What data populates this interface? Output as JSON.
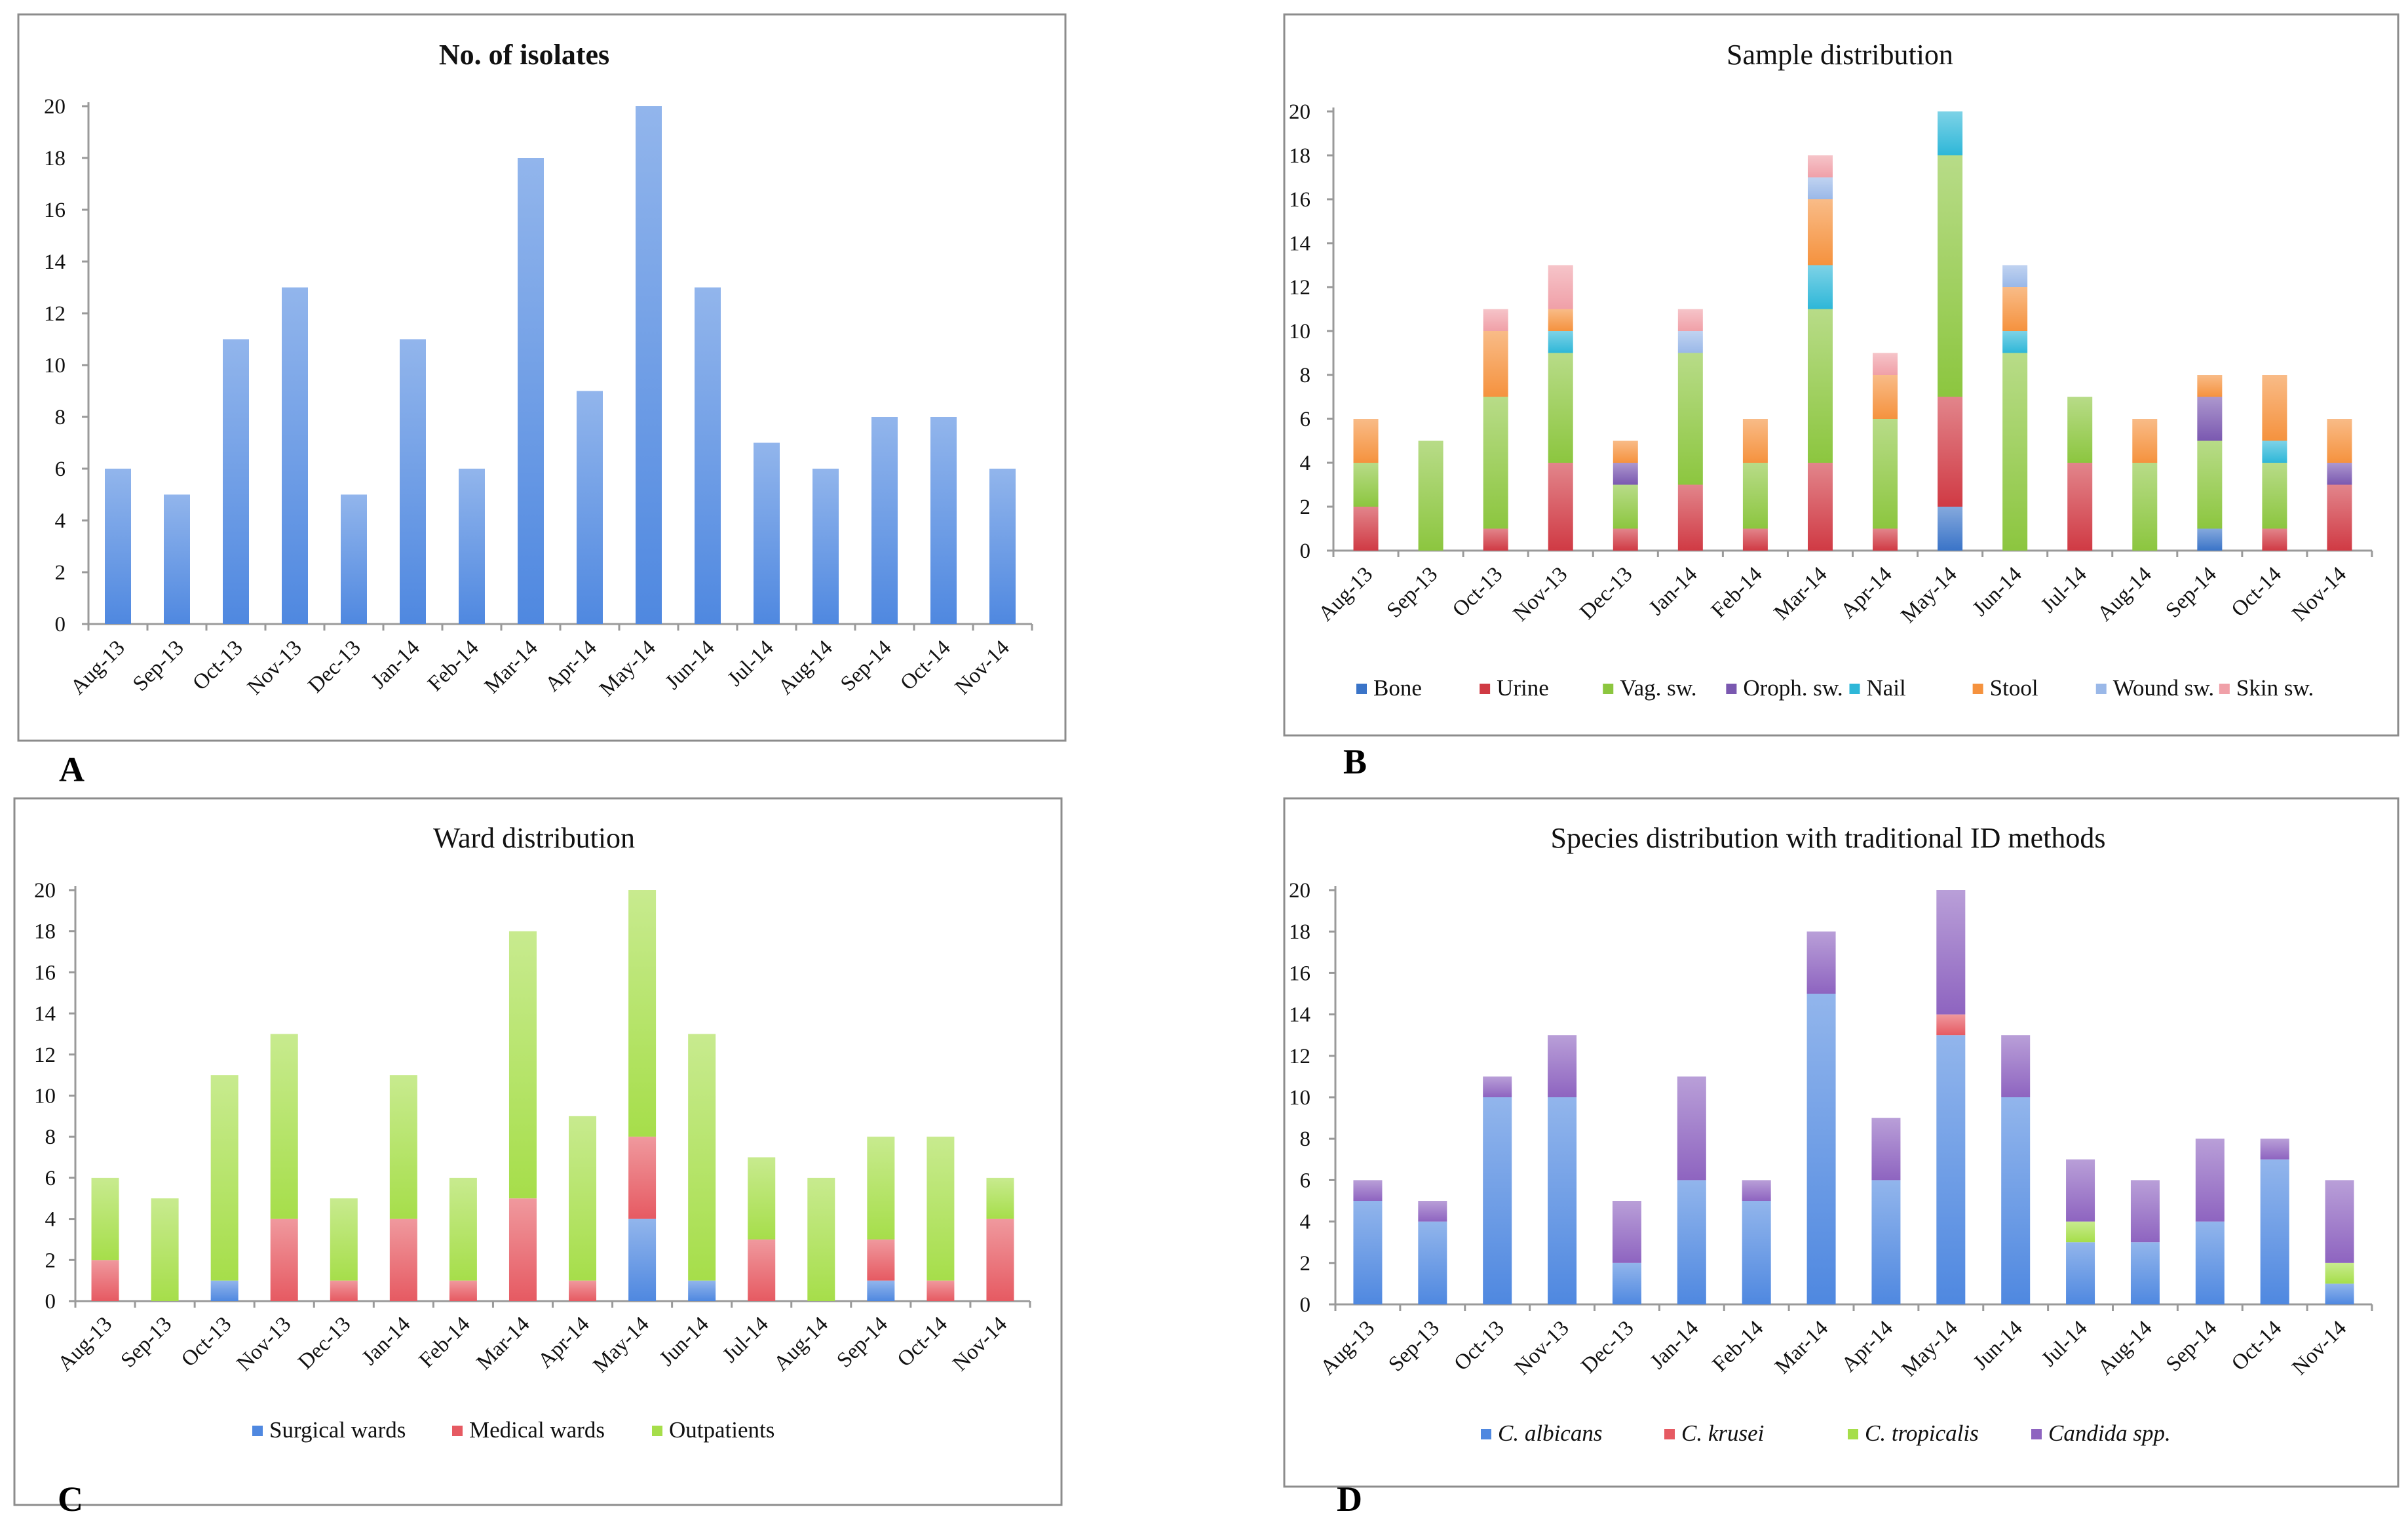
{
  "charts": [
    {
      "panel": "A",
      "type": "bar",
      "title": "No. of isolates",
      "title_bold": true,
      "categories": [
        "Aug-13",
        "Sep-13",
        "Oct-13",
        "Nov-13",
        "Dec-13",
        "Jan-14",
        "Feb-14",
        "Mar-14",
        "Apr-14",
        "May-14",
        "Jun-14",
        "Jul-14",
        "Aug-14",
        "Sep-14",
        "Oct-14",
        "Nov-14"
      ],
      "ylim": [
        0,
        20
      ],
      "yticks": [
        0,
        2,
        4,
        6,
        8,
        10,
        12,
        14,
        16,
        18,
        20
      ],
      "series": [
        {
          "name": "No. of isolates",
          "color": "#4f88e0",
          "values": [
            6,
            5,
            11,
            13,
            5,
            11,
            6,
            18,
            9,
            20,
            13,
            7,
            6,
            8,
            8,
            6
          ]
        }
      ],
      "legend": false,
      "legend_items": []
    },
    {
      "panel": "B",
      "type": "bar",
      "stacked": true,
      "title": "Sample distribution",
      "title_bold": false,
      "categories": [
        "Aug-13",
        "Sep-13",
        "Oct-13",
        "Nov-13",
        "Dec-13",
        "Jan-14",
        "Feb-14",
        "Mar-14",
        "Apr-14",
        "May-14",
        "Jun-14",
        "Jul-14",
        "Aug-14",
        "Sep-14",
        "Oct-14",
        "Nov-14"
      ],
      "ylim": [
        0,
        20
      ],
      "yticks": [
        0,
        2,
        4,
        6,
        8,
        10,
        12,
        14,
        16,
        18,
        20
      ],
      "series": [
        {
          "name": "Bone",
          "color": "#3a74c8",
          "values": [
            0,
            0,
            0,
            0,
            0,
            0,
            0,
            0,
            0,
            2,
            0,
            0,
            0,
            1,
            0,
            0
          ]
        },
        {
          "name": "Urine",
          "color": "#d03a44",
          "values": [
            2,
            0,
            1,
            4,
            1,
            3,
            1,
            4,
            1,
            5,
            0,
            4,
            0,
            0,
            1,
            3
          ]
        },
        {
          "name": "Vag. sw.",
          "color": "#8cc63f",
          "values": [
            2,
            5,
            6,
            5,
            2,
            6,
            3,
            7,
            5,
            11,
            9,
            3,
            4,
            4,
            3,
            0
          ]
        },
        {
          "name": "Oroph. sw.",
          "color": "#7a58b0",
          "values": [
            0,
            0,
            0,
            0,
            1,
            0,
            0,
            0,
            0,
            0,
            0,
            0,
            0,
            2,
            0,
            1
          ]
        },
        {
          "name": "Nail",
          "color": "#2eb7d8",
          "values": [
            0,
            0,
            0,
            1,
            0,
            0,
            0,
            2,
            0,
            2,
            1,
            0,
            0,
            0,
            1,
            0
          ]
        },
        {
          "name": "Stool",
          "color": "#f5923e",
          "values": [
            2,
            0,
            3,
            1,
            1,
            0,
            2,
            3,
            2,
            0,
            2,
            0,
            2,
            1,
            3,
            2
          ]
        },
        {
          "name": "Wound sw.",
          "color": "#9ab8e8",
          "values": [
            0,
            0,
            0,
            0,
            0,
            1,
            0,
            1,
            0,
            0,
            1,
            0,
            0,
            0,
            0,
            0
          ]
        },
        {
          "name": "Skin sw.",
          "color": "#f0a0a8",
          "values": [
            0,
            0,
            1,
            2,
            0,
            1,
            0,
            1,
            1,
            0,
            0,
            0,
            0,
            0,
            0,
            0
          ]
        }
      ],
      "legend": true,
      "legend_items": [
        {
          "label": "Bone",
          "color": "#3a74c8"
        },
        {
          "label": "Urine",
          "color": "#d03a44"
        },
        {
          "label": "Vag. sw.",
          "color": "#8cc63f"
        },
        {
          "label": "Oroph. sw.",
          "color": "#7a58b0"
        },
        {
          "label": "Nail",
          "color": "#2eb7d8"
        },
        {
          "label": "Stool",
          "color": "#f5923e"
        },
        {
          "label": "Wound sw.",
          "color": "#9ab8e8"
        },
        {
          "label": "Skin sw.",
          "color": "#f0a0a8"
        }
      ]
    },
    {
      "panel": "C",
      "type": "bar",
      "stacked": true,
      "title": "Ward distribution",
      "title_bold": false,
      "categories": [
        "Aug-13",
        "Sep-13",
        "Oct-13",
        "Nov-13",
        "Dec-13",
        "Jan-14",
        "Feb-14",
        "Mar-14",
        "Apr-14",
        "May-14",
        "Jun-14",
        "Jul-14",
        "Aug-14",
        "Sep-14",
        "Oct-14",
        "Nov-14"
      ],
      "ylim": [
        0,
        20
      ],
      "yticks": [
        0,
        2,
        4,
        6,
        8,
        10,
        12,
        14,
        16,
        18,
        20
      ],
      "series": [
        {
          "name": "Surgical wards",
          "color": "#4f88e0",
          "values": [
            0,
            0,
            1,
            0,
            0,
            0,
            0,
            0,
            0,
            4,
            1,
            0,
            0,
            1,
            0,
            0
          ]
        },
        {
          "name": "Medical wards",
          "color": "#e65a62",
          "values": [
            2,
            0,
            0,
            4,
            1,
            4,
            1,
            5,
            1,
            4,
            0,
            3,
            0,
            2,
            1,
            4
          ]
        },
        {
          "name": "Outpatients",
          "color": "#a6de4a",
          "values": [
            4,
            5,
            10,
            9,
            4,
            7,
            5,
            13,
            8,
            12,
            12,
            4,
            6,
            5,
            7,
            2
          ]
        }
      ],
      "legend": true,
      "legend_items": [
        {
          "label": "Surgical wards",
          "color": "#4f88e0"
        },
        {
          "label": "Medical wards",
          "color": "#e65a62"
        },
        {
          "label": "Outpatients",
          "color": "#a6de4a"
        }
      ]
    },
    {
      "panel": "D",
      "type": "bar",
      "stacked": true,
      "title": "Species distribution with traditional ID methods",
      "title_bold": false,
      "categories": [
        "Aug-13",
        "Sep-13",
        "Oct-13",
        "Nov-13",
        "Dec-13",
        "Jan-14",
        "Feb-14",
        "Mar-14",
        "Apr-14",
        "May-14",
        "Jun-14",
        "Jul-14",
        "Aug-14",
        "Sep-14",
        "Oct-14",
        "Nov-14"
      ],
      "ylim": [
        0,
        20
      ],
      "yticks": [
        0,
        2,
        4,
        6,
        8,
        10,
        12,
        14,
        16,
        18,
        20
      ],
      "series": [
        {
          "name": "C. albicans",
          "color": "#4f88e0",
          "values": [
            5,
            4,
            10,
            10,
            2,
            6,
            5,
            15,
            6,
            13,
            10,
            3,
            3,
            4,
            7,
            1
          ]
        },
        {
          "name": "C. krusei",
          "color": "#e65a62",
          "values": [
            0,
            0,
            0,
            0,
            0,
            0,
            0,
            0,
            0,
            1,
            0,
            0,
            0,
            0,
            0,
            0
          ]
        },
        {
          "name": "C. tropicalis",
          "color": "#a6de4a",
          "values": [
            0,
            0,
            0,
            0,
            0,
            0,
            0,
            0,
            0,
            0,
            0,
            1,
            0,
            0,
            0,
            1
          ]
        },
        {
          "name": "Candida spp.",
          "color": "#8e64c0",
          "values": [
            1,
            1,
            1,
            3,
            3,
            5,
            1,
            3,
            3,
            6,
            3,
            3,
            3,
            4,
            1,
            4
          ]
        }
      ],
      "legend": true,
      "legend_items": [
        {
          "label": "C. albicans",
          "color": "#4f88e0",
          "italic": true
        },
        {
          "label": "C. krusei",
          "color": "#e65a62",
          "italic": true
        },
        {
          "label": "C. tropicalis",
          "color": "#a6de4a",
          "italic": true
        },
        {
          "label": "Candida spp.",
          "color": "#8e64c0",
          "italic": true
        }
      ]
    }
  ],
  "panel_letters": [
    "A",
    "B",
    "C",
    "D"
  ]
}
